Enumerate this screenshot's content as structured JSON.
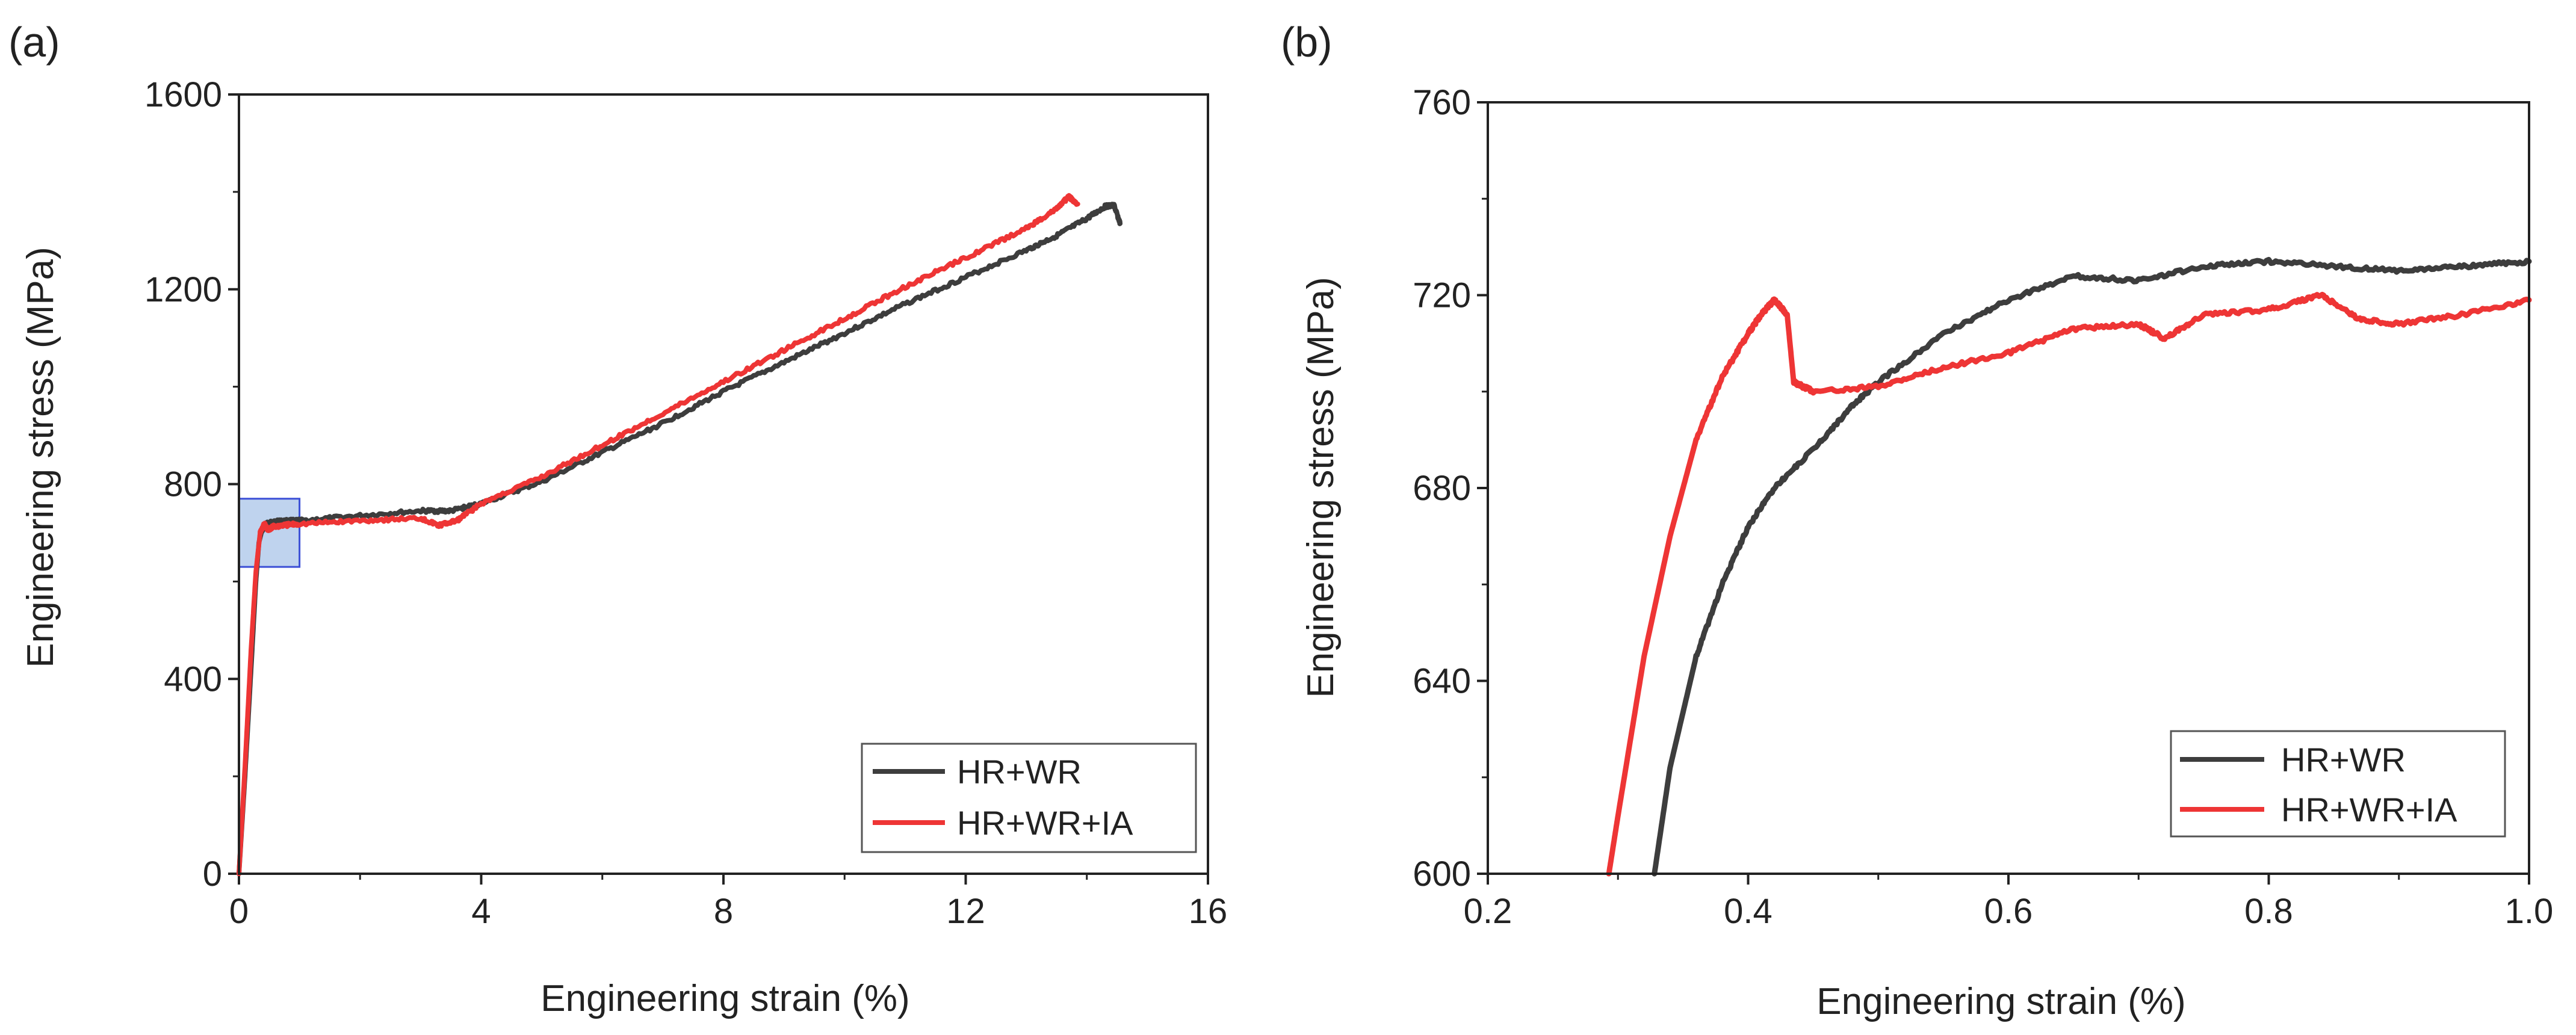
{
  "figure": {
    "panels": [
      {
        "panel_label": "(a)",
        "title": "",
        "legend": {
          "placement": "bottom-right",
          "entries": [
            "HR+WR",
            "HR+WR+IA"
          ]
        },
        "inset_marker": {
          "description": "shaded box marking the zoomed region",
          "x_range": [
            0.0,
            1.0
          ],
          "y_range": [
            630,
            770
          ],
          "color": "#a9c4e8"
        }
      },
      {
        "panel_label": "(b)",
        "title": "",
        "legend": {
          "placement": "bottom-right",
          "entries": [
            "HR+WR",
            "HR+WR+IA"
          ]
        }
      }
    ]
  },
  "chart_data": [
    {
      "type": "line",
      "title": "",
      "xlabel": "Engineering strain (%)",
      "ylabel": "Engineering stress (MPa)",
      "xlim": [
        0,
        16
      ],
      "ylim": [
        0,
        1600
      ],
      "xticks": [
        0,
        4,
        8,
        12,
        16
      ],
      "yticks": [
        0,
        400,
        800,
        1200,
        1600
      ],
      "xtick_labels": [
        "0",
        "4",
        "8",
        "12",
        "16"
      ],
      "ytick_labels": [
        "0",
        "400",
        "800",
        "1200",
        "1600"
      ],
      "grid": false,
      "legend_position": "bottom-right",
      "series": [
        {
          "name": "HR+WR",
          "color": "#3d3d3d",
          "x": [
            0,
            0.1,
            0.2,
            0.28,
            0.33,
            0.38,
            0.45,
            0.55,
            0.7,
            1.0,
            2.0,
            3.0,
            3.5,
            4.0,
            5.0,
            6.0,
            7.0,
            8.0,
            9.0,
            10.0,
            11.0,
            12.0,
            13.0,
            13.5,
            14.0,
            14.3,
            14.45,
            14.55
          ],
          "y": [
            0,
            200,
            420,
            600,
            680,
            705,
            718,
            722,
            724,
            725,
            735,
            745,
            745,
            760,
            805,
            865,
            925,
            990,
            1050,
            1110,
            1170,
            1225,
            1280,
            1310,
            1345,
            1370,
            1372,
            1335
          ]
        },
        {
          "name": "HR+WR+IA",
          "color": "#ee3535",
          "x": [
            0,
            0.1,
            0.2,
            0.28,
            0.35,
            0.42,
            0.48,
            0.55,
            0.7,
            1.0,
            2.0,
            3.0,
            3.3,
            3.6,
            4.0,
            5.0,
            6.0,
            7.0,
            8.0,
            9.0,
            10.0,
            11.0,
            12.0,
            13.0,
            13.5,
            13.7,
            13.85
          ],
          "y": [
            0,
            220,
            460,
            620,
            700,
            718,
            705,
            712,
            715,
            718,
            725,
            730,
            715,
            725,
            760,
            815,
            880,
            945,
            1010,
            1075,
            1140,
            1205,
            1265,
            1325,
            1365,
            1390,
            1375
          ]
        }
      ]
    },
    {
      "type": "line",
      "title": "",
      "xlabel": "Engineering strain (%)",
      "ylabel": "Engineering stress (MPa)",
      "xlim": [
        0.2,
        1.0
      ],
      "ylim": [
        600,
        760
      ],
      "xticks": [
        0.2,
        0.4,
        0.6,
        0.8,
        1.0
      ],
      "yticks": [
        600,
        640,
        680,
        720,
        760
      ],
      "xtick_labels": [
        "0.2",
        "0.4",
        "0.6",
        "0.8",
        "1.0"
      ],
      "ytick_labels": [
        "600",
        "640",
        "680",
        "720",
        "760"
      ],
      "grid": false,
      "legend_position": "bottom-right",
      "series": [
        {
          "name": "HR+WR",
          "color": "#3d3d3d",
          "x": [
            0.328,
            0.34,
            0.36,
            0.38,
            0.4,
            0.42,
            0.45,
            0.48,
            0.5,
            0.55,
            0.6,
            0.65,
            0.7,
            0.75,
            0.8,
            0.85,
            0.9,
            0.95,
            1.0
          ],
          "y": [
            600,
            622,
            645,
            660,
            672,
            680,
            688,
            697,
            702,
            712,
            719,
            724,
            723,
            726,
            727,
            726,
            725,
            726,
            727
          ]
        },
        {
          "name": "HR+WR+IA",
          "color": "#ee3535",
          "x": [
            0.293,
            0.3,
            0.32,
            0.34,
            0.36,
            0.38,
            0.4,
            0.41,
            0.42,
            0.43,
            0.435,
            0.45,
            0.5,
            0.55,
            0.6,
            0.65,
            0.7,
            0.72,
            0.75,
            0.8,
            0.84,
            0.87,
            0.9,
            0.95,
            1.0
          ],
          "y": [
            600,
            612,
            645,
            670,
            690,
            703,
            712,
            716,
            719,
            716,
            702,
            700,
            701,
            705,
            708,
            713,
            714,
            711,
            716,
            717,
            720,
            715,
            714,
            716,
            719
          ]
        }
      ]
    }
  ]
}
